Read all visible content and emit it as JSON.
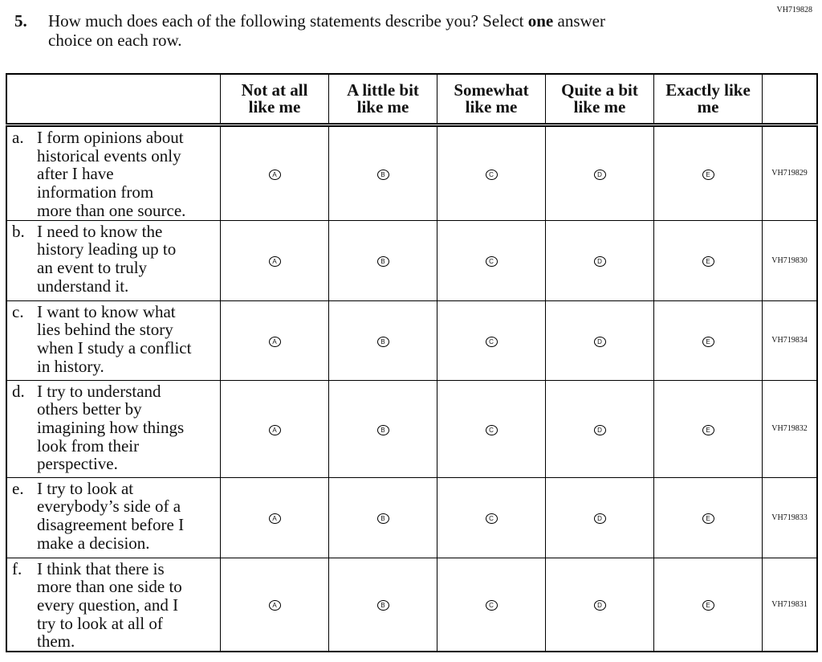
{
  "header": {
    "code": "VH719828"
  },
  "question": {
    "number": "5.",
    "line1": [
      "How much does each of the following statements describe you? Select ",
      "one",
      " answer"
    ],
    "line2": "choice on each row."
  },
  "table": {
    "columns": [
      [
        "Not at all",
        "like me"
      ],
      [
        "A little bit",
        "like me"
      ],
      [
        "Somewhat",
        "like me"
      ],
      [
        "Quite a bit",
        "like me"
      ],
      [
        "Exactly like",
        "me"
      ]
    ],
    "options": [
      "A",
      "B",
      "C",
      "D",
      "E"
    ],
    "rows": [
      {
        "letter": "a.",
        "lines": [
          "I form opinions about",
          "historical events only",
          "after I have",
          "information from",
          "more than one source."
        ],
        "code": "VH719829"
      },
      {
        "letter": "b.",
        "lines": [
          "I need to know the",
          "history leading up to",
          "an event to truly",
          "understand it."
        ],
        "code": "VH719830"
      },
      {
        "letter": "c.",
        "lines": [
          "I want to know what",
          "lies behind the story",
          "when I study a conflict",
          "in history."
        ],
        "code": "VH719834"
      },
      {
        "letter": "d.",
        "lines": [
          "I try to understand",
          "others better by",
          "imagining how things",
          "look from their",
          "perspective."
        ],
        "code": "VH719832"
      },
      {
        "letter": "e.",
        "lines": [
          "I try to look at",
          "everybody’s side of a",
          "disagreement before I",
          "make a decision."
        ],
        "code": "VH719833"
      },
      {
        "letter": "f.",
        "lines": [
          "I think that there is",
          "more than one side to",
          "every question, and I",
          "try to look at all of",
          "them."
        ],
        "code": "VH719831"
      }
    ]
  }
}
